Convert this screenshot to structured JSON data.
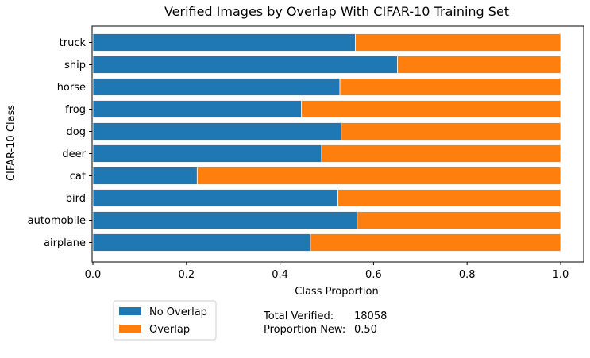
{
  "chart_data": {
    "type": "bar",
    "orientation": "horizontal",
    "stacked": true,
    "title": "Verified Images by Overlap With CIFAR-10 Training Set",
    "xlabel": "Class Proportion",
    "ylabel": "CIFAR-10 Class",
    "xlim": [
      0.0,
      1.0
    ],
    "xticks": [
      "0.0",
      "0.2",
      "0.4",
      "0.6",
      "0.8",
      "1.0"
    ],
    "grid": false,
    "legend_position": "below-left",
    "categories": [
      "airplane",
      "automobile",
      "bird",
      "cat",
      "deer",
      "dog",
      "frog",
      "horse",
      "ship",
      "truck"
    ],
    "series": [
      {
        "name": "No Overlap",
        "color": "#1f77b4",
        "values": [
          0.465,
          0.565,
          0.524,
          0.223,
          0.489,
          0.531,
          0.446,
          0.528,
          0.651,
          0.561
        ]
      },
      {
        "name": "Overlap",
        "color": "#ff7f0e",
        "values": [
          0.535,
          0.435,
          0.476,
          0.777,
          0.511,
          0.469,
          0.554,
          0.472,
          0.349,
          0.439
        ]
      }
    ]
  },
  "notes": {
    "total_label": "Total Verified:",
    "total_value": "18058",
    "proportion_label": "Proportion New:",
    "proportion_value": "0.50"
  }
}
